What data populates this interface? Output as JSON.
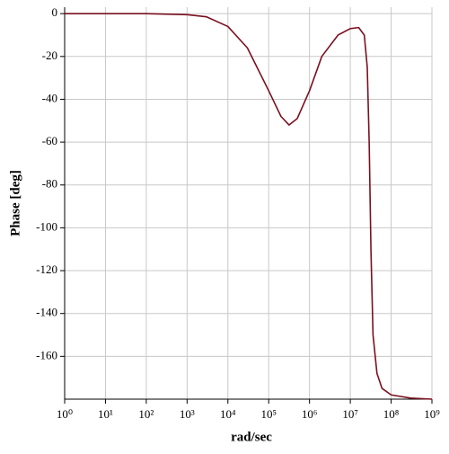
{
  "chart_data": {
    "type": "line",
    "xlabel": "rad/sec",
    "ylabel": "Phase [deg]",
    "xscale": "log",
    "grid": true,
    "xlim": [
      1,
      1000000000
    ],
    "ylim": [
      -180,
      3
    ],
    "xticks": [
      {
        "value": 1,
        "label": "10⁰"
      },
      {
        "value": 10,
        "label": "10¹"
      },
      {
        "value": 100,
        "label": "10²"
      },
      {
        "value": 1000,
        "label": "10³"
      },
      {
        "value": 10000,
        "label": "10⁴"
      },
      {
        "value": 100000,
        "label": "10⁵"
      },
      {
        "value": 1000000,
        "label": "10⁶"
      },
      {
        "value": 10000000,
        "label": "10⁷"
      },
      {
        "value": 100000000,
        "label": "10⁸"
      },
      {
        "value": 1000000000,
        "label": "10⁹"
      }
    ],
    "yticks": [
      0,
      -20,
      -40,
      -60,
      -80,
      -100,
      -120,
      -140,
      -160
    ],
    "series": [
      {
        "color": "#7a1020",
        "x": [
          1,
          100,
          1000,
          3000,
          10000,
          30000,
          100000,
          200000,
          316000,
          500000,
          1000000,
          2000000,
          5000000,
          10000000,
          16000000,
          22000000,
          26000000,
          29000000,
          32000000,
          36000000,
          45000000,
          60000000,
          100000000,
          300000000,
          1000000000
        ],
        "values": [
          0,
          0,
          -0.5,
          -1.5,
          -6,
          -16,
          -36,
          -48,
          -52,
          -49,
          -36,
          -20,
          -10,
          -7,
          -6.5,
          -10,
          -25,
          -60,
          -110,
          -150,
          -168,
          -175,
          -178,
          -179.5,
          -180
        ]
      }
    ]
  }
}
